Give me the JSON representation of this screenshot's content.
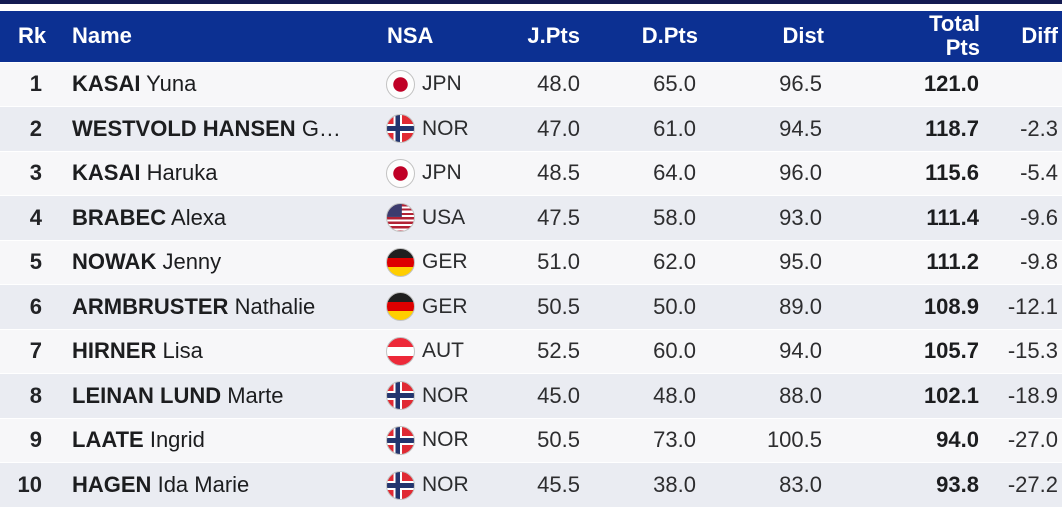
{
  "table": {
    "columns": [
      {
        "key": "rk",
        "label": "Rk"
      },
      {
        "key": "name",
        "label": "Name"
      },
      {
        "key": "nsa",
        "label": "NSA"
      },
      {
        "key": "j_pts",
        "label": "J.Pts"
      },
      {
        "key": "d_pts",
        "label": "D.Pts"
      },
      {
        "key": "dist",
        "label": "Dist"
      },
      {
        "key": "total",
        "label": "Total Pts",
        "label_lines": [
          "Total",
          "Pts"
        ]
      },
      {
        "key": "diff",
        "label": "Diff"
      }
    ],
    "rows": [
      {
        "rk": "1",
        "family": "KASAI",
        "given": "Yuna",
        "nsa": "JPN",
        "flag_icon": "flag-jpn-icon",
        "j_pts": "48.0",
        "d_pts": "65.0",
        "dist": "96.5",
        "total": "121.0",
        "diff": ""
      },
      {
        "rk": "2",
        "family": "WESTVOLD HANSEN",
        "given": "G…",
        "nsa": "NOR",
        "flag_icon": "flag-nor-icon",
        "j_pts": "47.0",
        "d_pts": "61.0",
        "dist": "94.5",
        "total": "118.7",
        "diff": "-2.3"
      },
      {
        "rk": "3",
        "family": "KASAI",
        "given": "Haruka",
        "nsa": "JPN",
        "flag_icon": "flag-jpn-icon",
        "j_pts": "48.5",
        "d_pts": "64.0",
        "dist": "96.0",
        "total": "115.6",
        "diff": "-5.4"
      },
      {
        "rk": "4",
        "family": "BRABEC",
        "given": "Alexa",
        "nsa": "USA",
        "flag_icon": "flag-usa-icon",
        "j_pts": "47.5",
        "d_pts": "58.0",
        "dist": "93.0",
        "total": "111.4",
        "diff": "-9.6"
      },
      {
        "rk": "5",
        "family": "NOWAK",
        "given": "Jenny",
        "nsa": "GER",
        "flag_icon": "flag-ger-icon",
        "j_pts": "51.0",
        "d_pts": "62.0",
        "dist": "95.0",
        "total": "111.2",
        "diff": "-9.8"
      },
      {
        "rk": "6",
        "family": "ARMBRUSTER",
        "given": "Nathalie",
        "nsa": "GER",
        "flag_icon": "flag-ger-icon",
        "j_pts": "50.5",
        "d_pts": "50.0",
        "dist": "89.0",
        "total": "108.9",
        "diff": "-12.1"
      },
      {
        "rk": "7",
        "family": "HIRNER",
        "given": "Lisa",
        "nsa": "AUT",
        "flag_icon": "flag-aut-icon",
        "j_pts": "52.5",
        "d_pts": "60.0",
        "dist": "94.0",
        "total": "105.7",
        "diff": "-15.3"
      },
      {
        "rk": "8",
        "family": "LEINAN LUND",
        "given": "Marte",
        "nsa": "NOR",
        "flag_icon": "flag-nor-icon",
        "j_pts": "45.0",
        "d_pts": "48.0",
        "dist": "88.0",
        "total": "102.1",
        "diff": "-18.9"
      },
      {
        "rk": "9",
        "family": "LAATE",
        "given": "Ingrid",
        "nsa": "NOR",
        "flag_icon": "flag-nor-icon",
        "j_pts": "50.5",
        "d_pts": "73.0",
        "dist": "100.5",
        "total": "94.0",
        "diff": "-27.0"
      },
      {
        "rk": "10",
        "family": "HAGEN",
        "given": "Ida Marie",
        "nsa": "NOR",
        "flag_icon": "flag-nor-icon",
        "j_pts": "45.5",
        "d_pts": "38.0",
        "dist": "83.0",
        "total": "93.8",
        "diff": "-27.2"
      }
    ]
  },
  "colors": {
    "header_bg": "#0c3092",
    "top_bar": "#141b52",
    "row_odd": "#f7f7f9",
    "row_even": "#eaecf2",
    "header_text": "#ffffff",
    "body_text": "#2d2d2f"
  }
}
